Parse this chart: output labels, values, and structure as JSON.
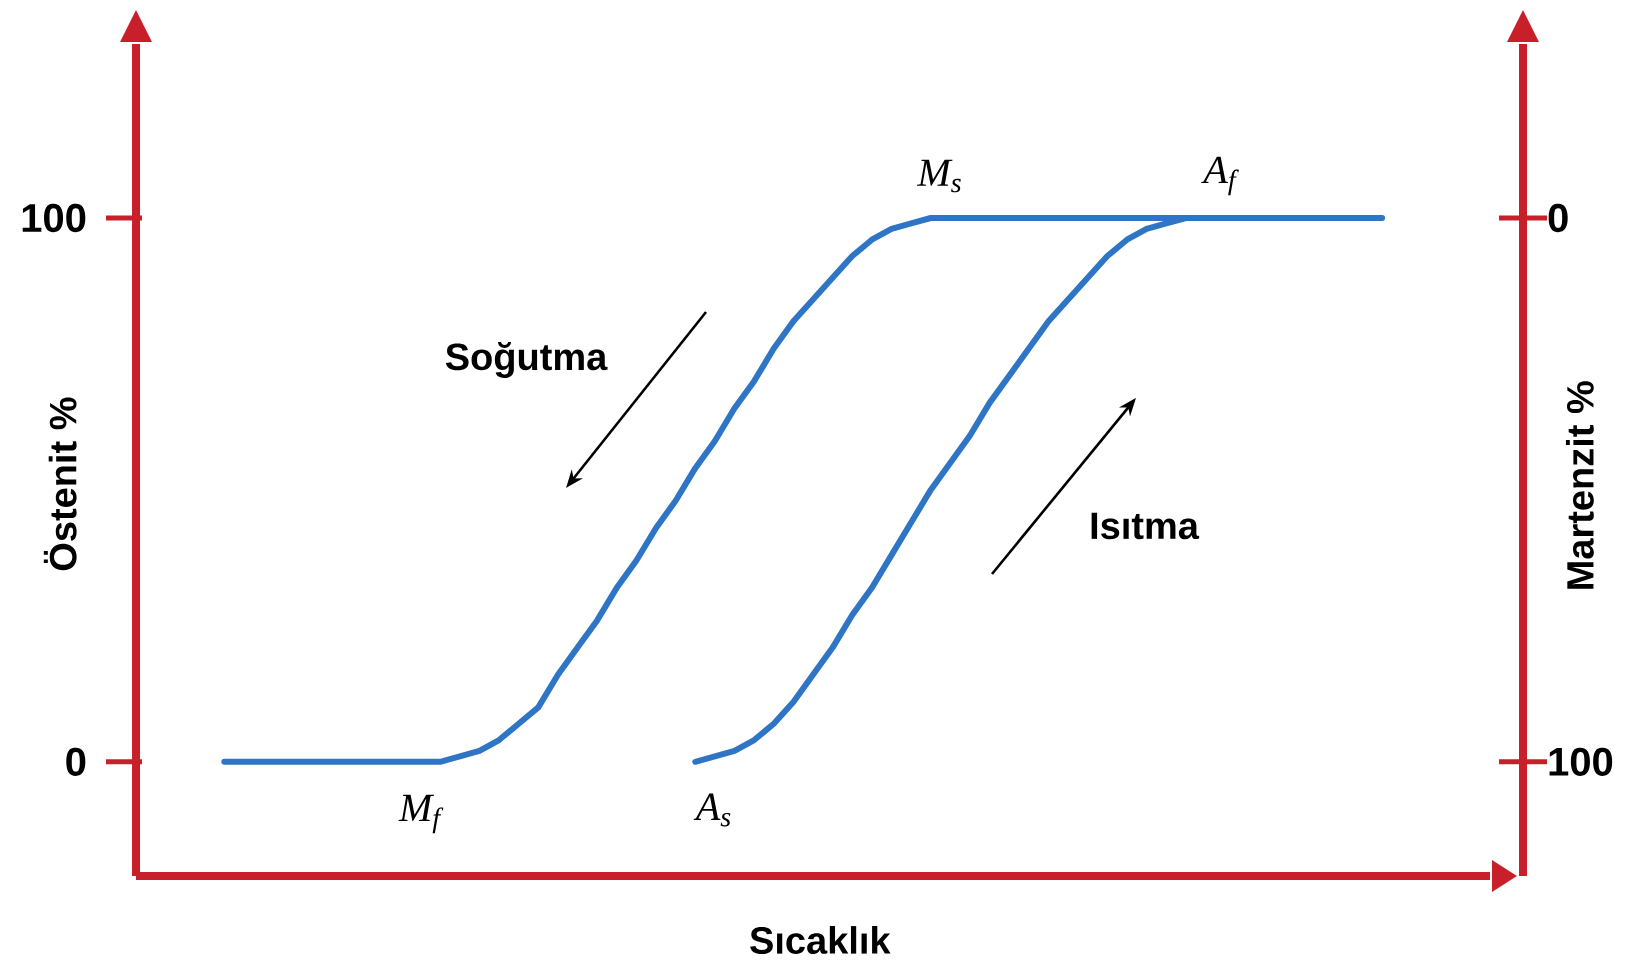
{
  "chart_data": {
    "type": "line",
    "xlabel": "Sıcaklık",
    "ylabel": "Östenit %",
    "y2label": "Martenzit %",
    "categories": [
      null,
      null,
      null,
      null,
      null,
      null,
      null,
      null,
      null,
      null,
      null,
      null,
      null,
      null,
      null,
      null,
      null,
      null,
      null,
      null,
      null,
      null,
      null,
      null,
      null,
      null,
      null,
      null,
      null,
      null,
      null,
      null,
      null,
      null,
      null,
      null,
      null,
      null,
      null,
      null,
      null,
      null,
      null,
      null,
      null,
      null,
      null,
      null,
      null,
      null,
      null,
      null,
      null,
      null,
      null,
      null,
      null,
      null,
      null,
      null,
      null,
      null,
      null,
      null,
      null,
      null,
      null,
      null,
      null
    ],
    "series": [
      {
        "color": "#2e75c6",
        "values": [
          null,
          null,
          null,
          null,
          0,
          0,
          0,
          0,
          0,
          0,
          0,
          0,
          0,
          0,
          0,
          0,
          1,
          2,
          4,
          7,
          10,
          16,
          21,
          26,
          32,
          37,
          43,
          48,
          54,
          59,
          65,
          70,
          76,
          81,
          85,
          89,
          93,
          96,
          98,
          99,
          100,
          100,
          100,
          100,
          100,
          100,
          100,
          100,
          100,
          100,
          100,
          100,
          100,
          100,
          100,
          100,
          100,
          100,
          100,
          100,
          100,
          100,
          100,
          100,
          null,
          null,
          null,
          null,
          null
        ]
      },
      {
        "color": "#2e75c6",
        "values": [
          null,
          null,
          null,
          null,
          null,
          null,
          null,
          null,
          null,
          null,
          null,
          null,
          null,
          null,
          null,
          null,
          null,
          null,
          null,
          null,
          null,
          null,
          null,
          null,
          null,
          null,
          null,
          null,
          0,
          1,
          2,
          4,
          7,
          11,
          16,
          21,
          27,
          32,
          38,
          44,
          50,
          55,
          60,
          66,
          71,
          76,
          81,
          85,
          89,
          93,
          96,
          98,
          99,
          100,
          null,
          null,
          null,
          null,
          null,
          null,
          null,
          null,
          null,
          null,
          null,
          null,
          null,
          null,
          null
        ]
      }
    ],
    "ylim": [
      -21,
      132
    ],
    "yticks": [
      0,
      100
    ],
    "y2lim": [
      121,
      -32
    ],
    "y2ticks": [
      0,
      100
    ],
    "tick_labels": "y",
    "marker": "none",
    "annotations": [
      "M$_{s}$",
      "A$_{f}$",
      "Soğutma",
      "Isıtma",
      "M$_{f}$",
      "A$_{s}$"
    ]
  }
}
